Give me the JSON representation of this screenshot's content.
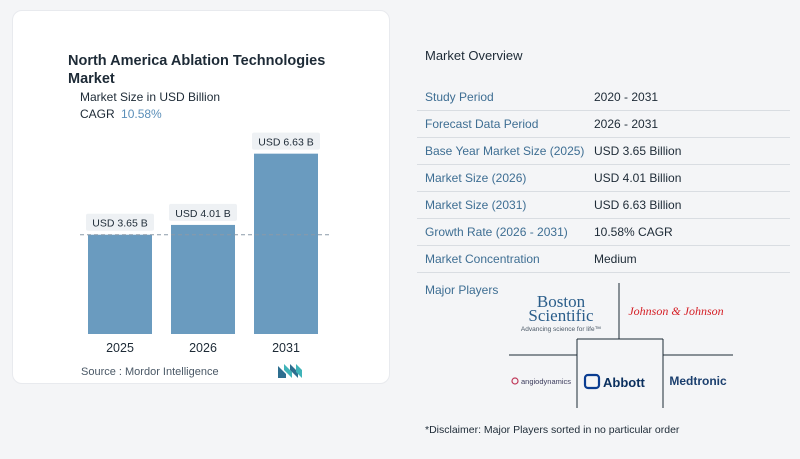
{
  "chart": {
    "title": "North America Ablation Technologies Market",
    "subtitle": "Market Size in USD Billion",
    "cagr_label": "CAGR",
    "cagr_value": "10.58%",
    "source": "Source :  Mordor Intelligence"
  },
  "chart_data": {
    "type": "bar",
    "categories": [
      "2025",
      "2026",
      "2031"
    ],
    "values": [
      3.65,
      4.01,
      6.63
    ],
    "data_labels": [
      "USD 3.65 B",
      "USD 4.01 B",
      "USD 6.63 B"
    ],
    "title": "North America Ablation Technologies Market",
    "ylabel": "Market Size in USD Billion",
    "ylim": [
      0,
      7.5
    ],
    "grid": false,
    "reference_line_value": 3.65,
    "bar_color": "#6a9bbf"
  },
  "overview": {
    "title": "Market Overview",
    "rows": [
      {
        "key": "Study Period",
        "value": "2020 - 2031"
      },
      {
        "key": "Forecast Data Period",
        "value": "2026 - 2031"
      },
      {
        "key": "Base Year Market Size (2025)",
        "value": "USD 3.65 Billion"
      },
      {
        "key": "Market Size (2026)",
        "value": "USD 4.01 Billion"
      },
      {
        "key": "Market Size (2031)",
        "value": "USD 6.63 Billion"
      },
      {
        "key": "Growth Rate (2026 - 2031)",
        "value": "10.58% CAGR"
      },
      {
        "key": "Market Concentration",
        "value": "Medium"
      }
    ],
    "players_label": "Major Players",
    "players": {
      "boston_top": "Boston",
      "boston_bottom": "Scientific",
      "boston_tagline": "Advancing science for life™",
      "jnj": "Johnson & Johnson",
      "angiodynamics": "angiodynamics",
      "abbott": "Abbott",
      "medtronic": "Medtronic"
    },
    "disclaimer": "*Disclaimer: Major Players sorted in no particular order"
  },
  "colors": {
    "bar": "#6a9bbf",
    "label_key": "#3e6e93",
    "abbott_blue": "#0a3d91",
    "jnj_red": "#d51f26"
  }
}
